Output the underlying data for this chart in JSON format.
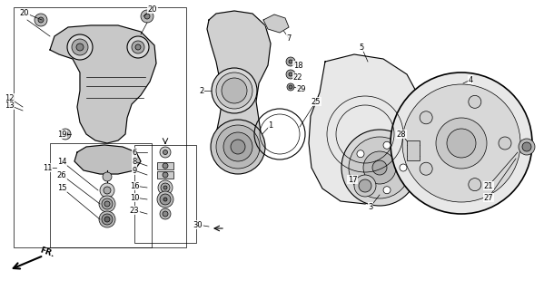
{
  "bg_color": "#ffffff",
  "line_color": "#000000",
  "label_positions": [
    [
      "20",
      27,
      14
    ],
    [
      "20",
      168,
      10
    ],
    [
      "12",
      10,
      108
    ],
    [
      "13",
      10,
      116
    ],
    [
      "19",
      68,
      148
    ],
    [
      "11",
      52,
      185
    ],
    [
      "14",
      68,
      178
    ],
    [
      "26",
      68,
      193
    ],
    [
      "15",
      68,
      207
    ],
    [
      "6",
      148,
      168
    ],
    [
      "8",
      148,
      178
    ],
    [
      "9",
      148,
      188
    ],
    [
      "16",
      148,
      205
    ],
    [
      "10",
      148,
      218
    ],
    [
      "23",
      148,
      232
    ],
    [
      "30",
      218,
      248
    ],
    [
      "2",
      222,
      100
    ],
    [
      "1",
      298,
      138
    ],
    [
      "7",
      318,
      42
    ],
    [
      "18",
      328,
      72
    ],
    [
      "22",
      328,
      85
    ],
    [
      "29",
      332,
      98
    ],
    [
      "25",
      348,
      112
    ],
    [
      "5",
      398,
      52
    ],
    [
      "28",
      442,
      148
    ],
    [
      "17",
      388,
      198
    ],
    [
      "3",
      408,
      228
    ],
    [
      "4",
      518,
      88
    ],
    [
      "27",
      538,
      218
    ],
    [
      "21",
      538,
      205
    ]
  ]
}
